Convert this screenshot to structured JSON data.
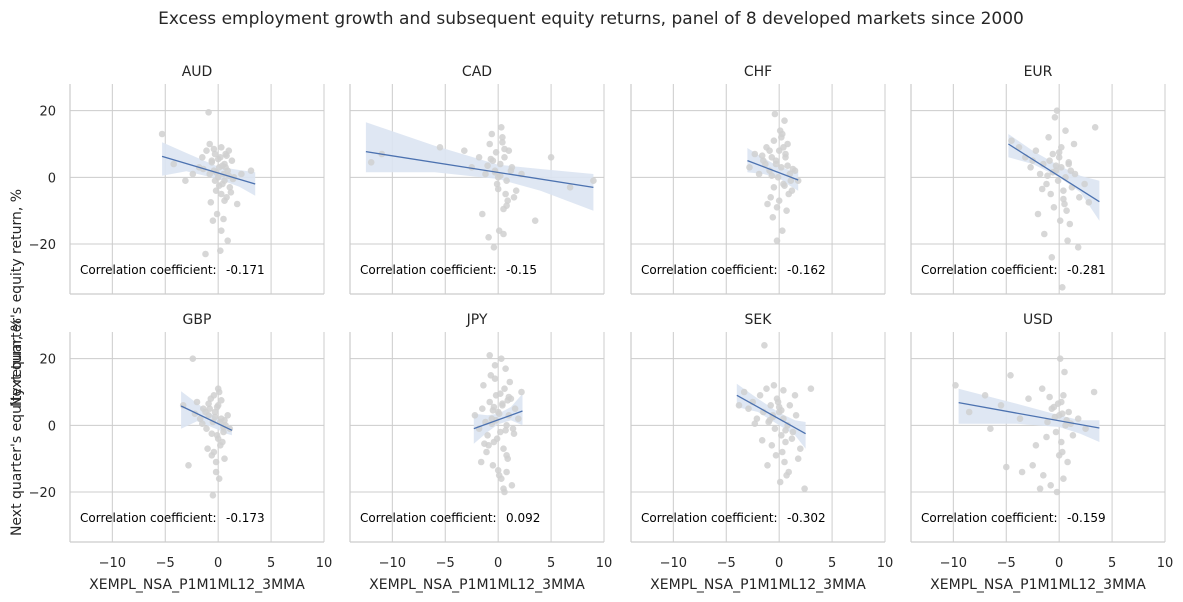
{
  "title": "Excess employment growth and subsequent equity returns, panel of 8 developed markets since 2000",
  "xlabel": "XEMPL_NSA_P1M1ML12_3MMA",
  "ylabel": "Next quarter's equity return, %",
  "corr_label": "Correlation coefficient:",
  "x_ticks": [
    -10,
    -5,
    0,
    5,
    10
  ],
  "x_tick_labels": [
    "−10",
    "−5",
    "0",
    "5",
    "10"
  ],
  "y_ticks": [
    -20,
    0,
    20
  ],
  "y_tick_labels": [
    "−20",
    "0",
    "20"
  ],
  "colors": {
    "line": "#4c72b0",
    "band": "#dbe4f2",
    "points": "#d0d0d0",
    "grid": "#cccccc"
  },
  "chart_data": [
    {
      "type": "scatter",
      "title": "AUD",
      "corr_value": "-0.171",
      "xlim": [
        -14,
        10
      ],
      "ylim": [
        -35,
        28
      ],
      "regression": {
        "x": [
          -5.3,
          3.5
        ],
        "y": [
          6.3,
          -2.0
        ]
      },
      "band": {
        "x": [
          -5.3,
          -3,
          0,
          2,
          3.5
        ],
        "upper": [
          10.5,
          7.3,
          3.2,
          2.2,
          1.5
        ],
        "lower": [
          0.5,
          1.8,
          -0.5,
          -2.8,
          -5.5
        ]
      },
      "x": [
        -5.3,
        -4.2,
        -3.1,
        -2.4,
        -1.8,
        -1.5,
        -1.1,
        -0.8,
        -0.6,
        -0.4,
        -0.3,
        -0.2,
        0.0,
        0.1,
        0.2,
        0.3,
        0.4,
        0.5,
        0.6,
        0.7,
        0.8,
        0.9,
        1.0,
        1.1,
        1.3,
        1.5,
        1.8,
        2.2,
        3.1,
        -0.9,
        -0.5,
        -0.1,
        0.3,
        0.6,
        0.9,
        -1.2,
        -0.7,
        0.2,
        0.5,
        1.2,
        -0.6,
        -0.3,
        0.1,
        0.4,
        0.8,
        -1.4,
        -0.2,
        0.6,
        1.0,
        -0.4,
        0.0,
        0.3,
        -0.8,
        0.7,
        1.4
      ],
      "y": [
        13.0,
        4.0,
        -1.0,
        1.0,
        3.0,
        6.0,
        8.0,
        10.0,
        5.0,
        2.0,
        -1.0,
        -4.0,
        0.0,
        3.0,
        6.0,
        9.0,
        -2.0,
        1.0,
        4.0,
        7.0,
        -6.0,
        2.0,
        8.0,
        -3.0,
        5.0,
        0.0,
        -8.0,
        1.0,
        2.0,
        19.5,
        -13.0,
        -11.0,
        -16.0,
        -7.0,
        -19.0,
        -23.0,
        -7.5,
        -22.0,
        -12.5,
        -4.5,
        4.5,
        7.0,
        -2.5,
        3.5,
        6.5,
        2.5,
        1.5,
        -1.0,
        0.5,
        8.5,
        5.5,
        -5.0,
        1.0,
        3.0,
        -0.5
      ]
    },
    {
      "type": "scatter",
      "title": "CAD",
      "corr_value": "-0.15",
      "xlim": [
        -14,
        10
      ],
      "ylim": [
        -35,
        28
      ],
      "regression": {
        "x": [
          -12.5,
          9.0
        ],
        "y": [
          7.7,
          -3.0
        ]
      },
      "band": {
        "x": [
          -12.5,
          -6,
          0,
          4,
          9
        ],
        "upper": [
          16.5,
          9.5,
          3.8,
          2.5,
          1.0
        ],
        "lower": [
          1.5,
          1.5,
          -0.5,
          -4.0,
          -10.0
        ]
      },
      "x": [
        -12.0,
        -11.0,
        -5.5,
        -3.2,
        -2.5,
        -1.8,
        -1.2,
        -0.8,
        -0.5,
        -0.3,
        -0.1,
        0.0,
        0.2,
        0.4,
        0.6,
        0.8,
        1.0,
        1.3,
        1.7,
        2.2,
        3.5,
        5.0,
        6.8,
        9.0,
        -0.9,
        -0.4,
        0.1,
        0.5,
        0.9,
        -1.5,
        -0.6,
        0.3,
        0.7,
        1.2,
        -0.2,
        0.0,
        -0.7,
        0.4,
        0.8,
        -1.0,
        0.2,
        0.6,
        1.5,
        -0.3,
        0.5
      ],
      "y": [
        4.5,
        7.0,
        9.0,
        8.0,
        3.0,
        6.0,
        1.0,
        10.0,
        5.0,
        2.0,
        -2.0,
        0.0,
        4.0,
        12.0,
        6.0,
        -1.0,
        8.0,
        3.0,
        -4.0,
        1.0,
        -13.0,
        6.0,
        -3.0,
        -1.0,
        -18.0,
        -21.0,
        -16.0,
        -17.0,
        -7.0,
        -11.0,
        13.0,
        15.0,
        -5.0,
        2.0,
        7.5,
        -3.5,
        5.5,
        10.5,
        -8.5,
        3.5,
        0.5,
        8.5,
        -6.0,
        1.5,
        -9.5
      ]
    },
    {
      "type": "scatter",
      "title": "CHF",
      "corr_value": "-0.162",
      "xlim": [
        -14,
        10
      ],
      "ylim": [
        -35,
        28
      ],
      "regression": {
        "x": [
          -3.0,
          1.8
        ],
        "y": [
          5.0,
          -0.8
        ]
      },
      "band": {
        "x": [
          -3.0,
          -1.5,
          0,
          1.0,
          1.8
        ],
        "upper": [
          8.8,
          5.8,
          3.2,
          2.2,
          1.6
        ],
        "lower": [
          1.5,
          1.0,
          -0.3,
          -2.5,
          -4.0
        ]
      },
      "x": [
        -2.8,
        -2.3,
        -1.9,
        -1.5,
        -1.2,
        -0.9,
        -0.7,
        -0.5,
        -0.3,
        -0.1,
        0.0,
        0.2,
        0.4,
        0.6,
        0.8,
        1.0,
        1.2,
        1.5,
        1.8,
        -1.1,
        -0.6,
        -0.2,
        0.3,
        0.7,
        -0.8,
        -0.4,
        0.1,
        0.5,
        0.9,
        -1.3,
        -0.5,
        0.2,
        0.6,
        1.1,
        -0.3,
        0.0,
        0.4,
        -0.7,
        0.8,
        -1.6,
        -0.2,
        0.3,
        1.3,
        -0.9,
        0.5
      ],
      "y": [
        3.0,
        7.0,
        1.0,
        5.0,
        9.0,
        2.0,
        6.0,
        11.0,
        4.0,
        0.0,
        8.0,
        3.0,
        -2.0,
        6.0,
        10.0,
        1.0,
        -4.0,
        2.0,
        -1.0,
        -8.0,
        -12.0,
        -19.0,
        -16.0,
        -10.0,
        -6.0,
        19.0,
        14.0,
        17.0,
        -5.0,
        4.0,
        -3.0,
        12.0,
        7.0,
        -1.0,
        5.0,
        -7.0,
        9.0,
        0.5,
        3.5,
        6.5,
        -9.0,
        13.0,
        2.5,
        8.0,
        -2.5
      ]
    },
    {
      "type": "scatter",
      "title": "EUR",
      "corr_value": "-0.281",
      "xlim": [
        -14,
        10
      ],
      "ylim": [
        -35,
        28
      ],
      "regression": {
        "x": [
          -4.8,
          3.8
        ],
        "y": [
          10.0,
          -7.3
        ]
      },
      "band": {
        "x": [
          -4.8,
          -2.5,
          0,
          2.0,
          3.8
        ],
        "upper": [
          13.0,
          8.0,
          3.5,
          0.5,
          -1.0
        ],
        "lower": [
          6.0,
          4.0,
          0.0,
          -4.5,
          -13.0
        ]
      },
      "x": [
        -4.5,
        -3.8,
        -3.2,
        -2.7,
        -2.2,
        -1.8,
        -1.5,
        -1.2,
        -0.9,
        -0.6,
        -0.3,
        -0.1,
        0.0,
        0.2,
        0.4,
        0.6,
        0.9,
        1.2,
        1.5,
        1.9,
        2.4,
        3.4,
        -1.0,
        -0.5,
        0.1,
        0.5,
        1.0,
        -2.0,
        -1.4,
        -0.7,
        0.3,
        0.8,
        -0.2,
        0.6,
        -0.4,
        1.4,
        -2.5,
        -0.8,
        0.2,
        1.1,
        -1.6,
        0.0,
        0.7,
        -0.3,
        0.4,
        1.8,
        -1.1,
        0.9,
        -0.6,
        2.8
      ],
      "y": [
        11.0,
        9.0,
        6.0,
        3.0,
        8.0,
        1.0,
        4.0,
        -2.0,
        5.0,
        7.0,
        2.0,
        -1.0,
        6.0,
        3.0,
        -4.0,
        0.0,
        4.0,
        -3.0,
        1.0,
        -6.0,
        -2.0,
        15.0,
        12.0,
        -9.0,
        -13.0,
        -8.0,
        -14.0,
        -11.0,
        -17.0,
        -24.0,
        -33.0,
        -19.0,
        20.0,
        14.0,
        18.0,
        10.0,
        5.0,
        -5.0,
        9.0,
        2.0,
        -3.5,
        7.5,
        -10.0,
        3.5,
        -6.5,
        -21.0,
        0.5,
        4.5,
        1.5,
        -7.5
      ]
    },
    {
      "type": "scatter",
      "title": "GBP",
      "corr_value": "-0.173",
      "xlim": [
        -14,
        10
      ],
      "ylim": [
        -35,
        28
      ],
      "regression": {
        "x": [
          -3.5,
          1.3
        ],
        "y": [
          5.8,
          -1.5
        ]
      },
      "band": {
        "x": [
          -3.5,
          -2.0,
          0,
          0.8,
          1.3
        ],
        "upper": [
          10.2,
          6.6,
          2.0,
          0.5,
          -0.4
        ],
        "lower": [
          -1.0,
          1.2,
          -1.3,
          -2.5,
          -3.0
        ]
      },
      "x": [
        -3.3,
        -2.8,
        -2.4,
        -2.0,
        -1.7,
        -1.4,
        -1.1,
        -0.9,
        -0.7,
        -0.5,
        -0.3,
        -0.1,
        0.0,
        0.1,
        0.3,
        0.5,
        0.7,
        0.9,
        1.1,
        -1.0,
        -0.6,
        -0.2,
        0.2,
        0.6,
        -0.8,
        -0.4,
        0.0,
        0.4,
        -1.2,
        -0.5,
        0.1,
        -0.3,
        0.3,
        -0.6,
        0.2,
        -2.2,
        -1.5,
        -0.1,
        0.5,
        -0.9,
        0.0,
        -0.4,
        0.6,
        -0.2
      ],
      "y": [
        6.0,
        -12.0,
        20.0,
        7.0,
        2.0,
        5.0,
        -1.0,
        3.0,
        8.0,
        1.0,
        4.0,
        -3.0,
        6.0,
        10.0,
        2.0,
        -2.0,
        0.0,
        3.0,
        -1.0,
        -7.0,
        -9.0,
        -14.0,
        -6.0,
        -10.0,
        5.0,
        9.0,
        -4.0,
        -5.0,
        4.0,
        -21.0,
        -16.0,
        2.5,
        7.5,
        -2.5,
        1.0,
        3.5,
        0.5,
        5.5,
        -0.5,
        6.5,
        11.0,
        -8.0,
        1.5,
        -11.0
      ]
    },
    {
      "type": "scatter",
      "title": "JPY",
      "corr_value": "0.092",
      "xlim": [
        -14,
        10
      ],
      "ylim": [
        -35,
        28
      ],
      "regression": {
        "x": [
          -2.3,
          2.3
        ],
        "y": [
          -1.0,
          4.3
        ]
      },
      "band": {
        "x": [
          -2.3,
          -1.0,
          0,
          1.2,
          2.3
        ],
        "upper": [
          3.5,
          3.0,
          3.5,
          5.5,
          9.5
        ],
        "lower": [
          -5.5,
          -2.0,
          0.3,
          1.5,
          0.0
        ]
      },
      "x": [
        -2.2,
        -1.8,
        -1.5,
        -1.2,
        -1.0,
        -0.8,
        -0.6,
        -0.4,
        -0.2,
        0.0,
        0.2,
        0.4,
        0.6,
        0.8,
        1.0,
        1.2,
        1.4,
        1.6,
        1.9,
        2.2,
        -1.1,
        -0.5,
        0.1,
        0.5,
        0.9,
        -0.7,
        -0.3,
        0.3,
        0.7,
        1.1,
        -0.9,
        -0.1,
        0.4,
        0.8,
        -1.4,
        -0.2,
        0.6,
        1.3,
        -0.5,
        0.2,
        -1.6,
        0.0,
        0.9,
        -0.8,
        1.5,
        -0.3,
        0.5,
        0.1,
        -0.6,
        1.0,
        -1.3,
        0.3,
        0.7,
        -0.4,
        0.8
      ],
      "y": [
        3.0,
        -1.0,
        5.0,
        1.0,
        -3.0,
        7.0,
        2.0,
        -5.0,
        9.0,
        4.0,
        -2.0,
        6.0,
        11.0,
        0.0,
        3.0,
        8.0,
        -1.0,
        5.0,
        2.0,
        10.0,
        -8.0,
        -12.0,
        -15.0,
        -19.0,
        -10.0,
        15.0,
        18.0,
        20.0,
        17.0,
        13.0,
        -6.0,
        -4.0,
        6.5,
        -9.0,
        12.0,
        1.5,
        -20.0,
        -18.0,
        4.5,
        9.5,
        -11.0,
        -13.5,
        7.5,
        21.0,
        -2.5,
        14.0,
        -7.0,
        3.5,
        0.5,
        8.5,
        -5.5,
        -16.0,
        -1.5,
        5.5,
        -14.0
      ]
    },
    {
      "type": "scatter",
      "title": "SEK",
      "corr_value": "-0.302",
      "xlim": [
        -14,
        10
      ],
      "ylim": [
        -35,
        28
      ],
      "regression": {
        "x": [
          -4.0,
          2.5
        ],
        "y": [
          9.0,
          -2.5
        ]
      },
      "band": {
        "x": [
          -4.0,
          -2.0,
          0,
          1.5,
          2.5
        ],
        "upper": [
          12.5,
          8.0,
          3.8,
          1.5,
          1.0
        ],
        "lower": [
          5.5,
          4.0,
          0.0,
          -3.0,
          -7.0
        ]
      },
      "x": [
        -3.8,
        -3.3,
        -2.9,
        -2.5,
        -2.1,
        -1.8,
        -1.5,
        -1.2,
        -1.0,
        -0.8,
        -0.6,
        -0.4,
        -0.2,
        0.0,
        0.2,
        0.4,
        0.6,
        0.8,
        1.0,
        1.3,
        1.6,
        2.0,
        2.4,
        3.0,
        -1.1,
        -0.7,
        -0.3,
        0.1,
        0.5,
        0.9,
        -1.4,
        -0.5,
        0.3,
        0.7,
        -0.9,
        0.0,
        1.2,
        -2.3,
        -0.1,
        0.6,
        1.5,
        -1.6,
        0.4,
        -0.6,
        1.8,
        0.2
      ],
      "y": [
        6.0,
        10.0,
        5.0,
        7.0,
        2.0,
        9.0,
        4.0,
        11.0,
        1.0,
        6.0,
        3.0,
        -1.0,
        8.0,
        4.0,
        -3.0,
        2.0,
        -5.0,
        0.0,
        6.0,
        -2.0,
        3.0,
        -7.0,
        -19.0,
        11.0,
        -12.0,
        -6.0,
        -9.0,
        -17.0,
        -11.0,
        -14.0,
        24.0,
        12.0,
        -8.0,
        -15.0,
        1.5,
        5.5,
        -4.0,
        0.5,
        7.0,
        -1.5,
        9.0,
        -4.5,
        10.5,
        2.5,
        -10.0,
        4.5
      ]
    },
    {
      "type": "scatter",
      "title": "USD",
      "corr_value": "-0.159",
      "xlim": [
        -14,
        10
      ],
      "ylim": [
        -35,
        28
      ],
      "regression": {
        "x": [
          -9.5,
          3.8
        ],
        "y": [
          6.8,
          -0.8
        ]
      },
      "band": {
        "x": [
          -9.5,
          -4.0,
          0,
          2.0,
          3.8
        ],
        "upper": [
          11.0,
          6.5,
          3.0,
          1.5,
          1.5
        ],
        "lower": [
          0.5,
          0.5,
          -0.5,
          -2.5,
          -5.0
        ]
      },
      "x": [
        -9.8,
        -8.5,
        -7.0,
        -5.5,
        -4.6,
        -3.7,
        -2.9,
        -2.2,
        -1.6,
        -1.1,
        -0.7,
        -0.3,
        0.0,
        0.2,
        0.4,
        0.6,
        0.9,
        1.3,
        1.8,
        2.5,
        3.3,
        -2.5,
        -1.5,
        -0.8,
        -0.2,
        0.3,
        0.8,
        -3.5,
        -1.2,
        0.1,
        0.5,
        -0.5,
        0.0,
        0.7,
        -6.5,
        -1.8,
        -0.4,
        0.2,
        1.1,
        -0.1,
        0.4,
        -0.9,
        0.3,
        -5.0
      ],
      "y": [
        12.0,
        4.0,
        9.0,
        6.0,
        15.0,
        2.0,
        8.0,
        -6.0,
        11.0,
        1.0,
        5.0,
        -2.0,
        3.0,
        7.0,
        9.0,
        0.0,
        4.0,
        -3.0,
        2.0,
        -1.0,
        10.0,
        -12.0,
        -15.0,
        -18.0,
        -20.0,
        -8.0,
        -11.0,
        -14.0,
        -3.5,
        20.0,
        16.0,
        5.5,
        -9.0,
        1.5,
        -1.0,
        -19.0,
        2.5,
        -5.0,
        0.5,
        6.5,
        -16.0,
        8.5,
        3.5,
        -12.5
      ]
    }
  ]
}
